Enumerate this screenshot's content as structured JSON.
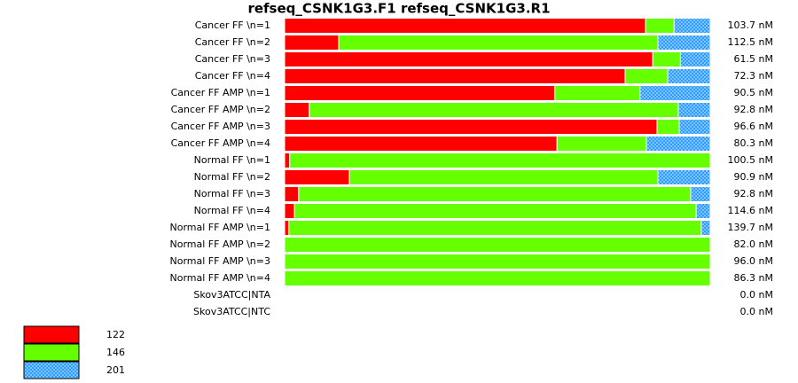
{
  "chart_data": {
    "type": "stacked-bar-horizontal",
    "title": "refseq_CSNK1G3.F1  refseq_CSNK1G3.R1",
    "categories": [
      "Cancer FF \\n=1",
      "Cancer FF \\n=2",
      "Cancer FF \\n=3",
      "Cancer FF \\n=4",
      "Cancer FF AMP \\n=1",
      "Cancer FF AMP \\n=2",
      "Cancer FF AMP \\n=3",
      "Cancer FF AMP \\n=4",
      "Normal FF \\n=1",
      "Normal FF \\n=2",
      "Normal FF \\n=3",
      "Normal FF \\n=4",
      "Normal FF AMP \\n=1",
      "Normal FF AMP \\n=2",
      "Normal FF AMP \\n=3",
      "Normal FF AMP \\n=4",
      "Skov3ATCC|NTA",
      "Skov3ATCC|NTC"
    ],
    "concentrations": [
      "103.7 nM",
      "112.5 nM",
      "61.5 nM",
      "72.3 nM",
      "90.5 nM",
      "92.8 nM",
      "96.6 nM",
      "80.3 nM",
      "100.5 nM",
      "90.9 nM",
      "92.8 nM",
      "114.6 nM",
      "139.7 nM",
      "82.0 nM",
      "96.0 nM",
      "86.3 nM",
      "0.0 nM",
      "0.0 nM"
    ],
    "xlim": [
      0,
      100
    ],
    "series": [
      {
        "name": "122",
        "color": "#ff0000",
        "pattern": false,
        "values": [
          84.8,
          12.7,
          86.5,
          80,
          63.5,
          5.8,
          87.5,
          64,
          1.2,
          15.2,
          3.3,
          2.3,
          1,
          0,
          0,
          0,
          0,
          0
        ]
      },
      {
        "name": "146",
        "color": "#66ff00",
        "pattern": false,
        "values": [
          6.7,
          75,
          6.5,
          10,
          20,
          86.7,
          5.2,
          21,
          98.8,
          72.5,
          92.1,
          94.4,
          96.9,
          100,
          100,
          100,
          0,
          0
        ]
      },
      {
        "name": "201",
        "color": "#2f9cff",
        "pattern": true,
        "values": [
          8.5,
          12.3,
          7,
          10,
          16.5,
          7.5,
          7.3,
          15,
          0,
          12.3,
          4.6,
          3.3,
          2.1,
          0,
          0,
          0,
          0,
          0
        ]
      }
    ]
  }
}
